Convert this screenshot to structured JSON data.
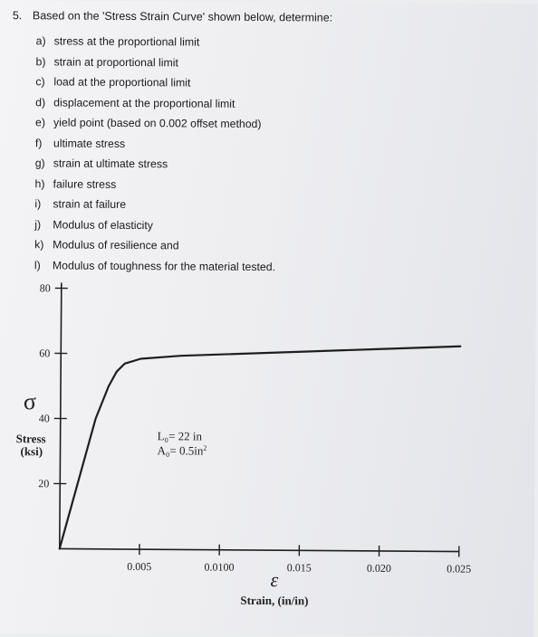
{
  "problem": {
    "number": "5.",
    "prompt": "Based on the 'Stress Strain Curve' shown below, determine:",
    "items": [
      {
        "letter": "a)",
        "text": "stress at the proportional limit"
      },
      {
        "letter": "b)",
        "text": "strain at proportional limit"
      },
      {
        "letter": "c)",
        "text": "load at the proportional limit"
      },
      {
        "letter": "d)",
        "text": "displacement at the proportional limit"
      },
      {
        "letter": "e)",
        "text": "yield point (based on 0.002 offset method)"
      },
      {
        "letter": "f)",
        "text": "ultimate stress"
      },
      {
        "letter": "g)",
        "text": "strain at ultimate stress"
      },
      {
        "letter": "h)",
        "text": "failure stress"
      },
      {
        "letter": "i)",
        "text": "strain at failure"
      },
      {
        "letter": "j)",
        "text": "Modulus of elasticity"
      },
      {
        "letter": "k)",
        "text": "Modulus of resilience and"
      },
      {
        "letter": "l)",
        "text": "Modulus of toughness for the material tested."
      }
    ]
  },
  "chart_data": {
    "type": "line",
    "y_symbol": "σ",
    "ylabel_line1": "Stress",
    "ylabel_line2": "(ksi)",
    "x_symbol": "ε",
    "xlabel": "Strain, (in/in)",
    "x_ticks": [
      "0.005",
      "0.0100",
      "0.015",
      "0.020",
      "0.025"
    ],
    "y_ticks": [
      "20",
      "40",
      "60",
      "80"
    ],
    "xlim": [
      0,
      0.025
    ],
    "ylim": [
      0,
      80
    ],
    "annotation_L0": "L₀= 22 in",
    "annotation_A0_prefix": "A₀= 0.5in",
    "annotation_A0_sup": "2",
    "series": [
      {
        "x": [
          0,
          0.0022,
          0.003,
          0.0035,
          0.004,
          0.005,
          0.0075,
          0.01,
          0.015,
          0.02,
          0.025
        ],
        "y": [
          0,
          40,
          50,
          54.5,
          57,
          58.5,
          59.5,
          60,
          61,
          62,
          63
        ]
      }
    ],
    "grid": false
  }
}
